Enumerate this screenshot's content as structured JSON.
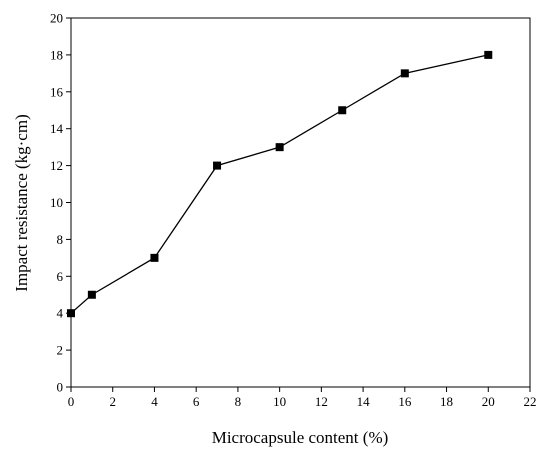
{
  "chart_data": {
    "type": "line",
    "xlabel": "Microcapsule content (%)",
    "ylabel": "Impact resistance (kg·cm)",
    "xlim": [
      0,
      22
    ],
    "ylim": [
      0,
      20
    ],
    "x_ticks": [
      0,
      2,
      4,
      6,
      8,
      10,
      12,
      14,
      16,
      18,
      20,
      22
    ],
    "y_ticks": [
      0,
      2,
      4,
      6,
      8,
      10,
      12,
      14,
      16,
      18,
      20
    ],
    "grid": false,
    "marker": "square",
    "series": [
      {
        "x": [
          0,
          1,
          4,
          7,
          10,
          13,
          16,
          20
        ],
        "y": [
          4,
          5,
          7,
          12,
          13,
          15,
          17,
          18
        ]
      }
    ],
    "colors": {
      "line": "#000000",
      "marker": "#000000"
    }
  }
}
